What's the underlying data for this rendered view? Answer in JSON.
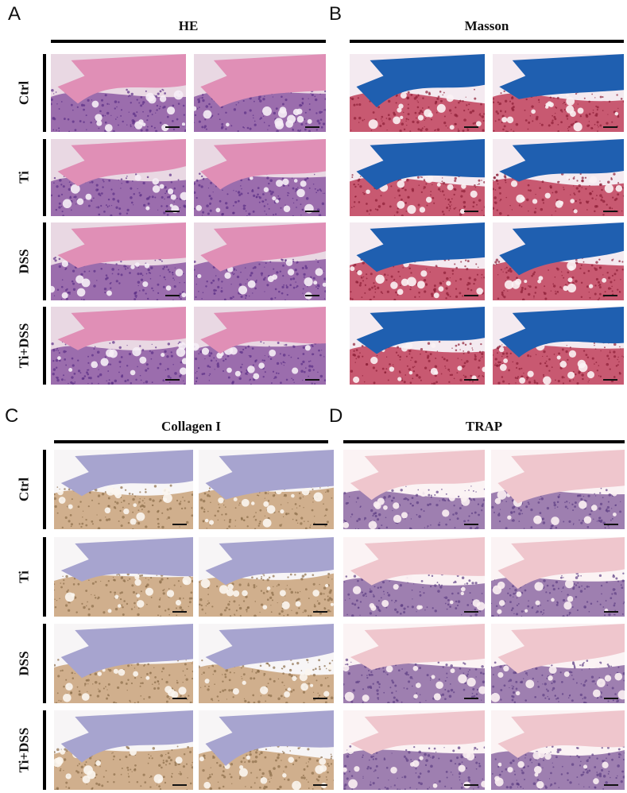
{
  "panels": [
    {
      "letter": "A",
      "stain": "HE",
      "colors": {
        "bg": "#e9d8e3",
        "tissue": "#e08fb6",
        "cells": "#8d5aa3",
        "dark": "#5b2f86",
        "fat": "#f6eef6"
      }
    },
    {
      "letter": "B",
      "stain": "Masson",
      "colors": {
        "bg": "#f4eaf0",
        "tissue": "#1f5fb0",
        "cells": "#c0405a",
        "dark": "#8c1e36",
        "fat": "#fbf2f4"
      }
    },
    {
      "letter": "C",
      "stain": "Collagen I",
      "colors": {
        "bg": "#f7f5f6",
        "tissue": "#a7a4cf",
        "cells": "#c9a27a",
        "dark": "#8b6e4a",
        "fat": "#fbf6ef"
      }
    },
    {
      "letter": "D",
      "stain": "TRAP",
      "colors": {
        "bg": "#fbf3f4",
        "tissue": "#efc6cd",
        "cells": "#8d6aa3",
        "dark": "#5e3f84",
        "fat": "#fbf1f3"
      }
    }
  ],
  "groups": [
    "Ctrl",
    "Ti",
    "DSS",
    "Ti+DSS"
  ]
}
